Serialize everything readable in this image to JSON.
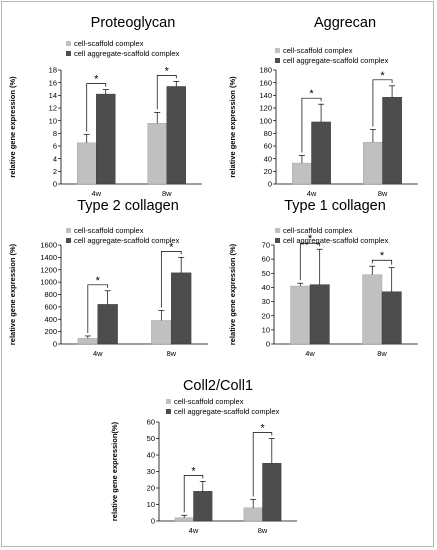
{
  "colors": {
    "series1": "#c0c0c0",
    "series2": "#4d4d4d",
    "axis": "#000000"
  },
  "chart_data": [
    {
      "type": "bar",
      "title": "Proteoglycan",
      "ylabel": "relative gene expression (%)",
      "categories": [
        "4w",
        "8w"
      ],
      "ylim": [
        0,
        18
      ],
      "yticks": [
        0,
        2,
        4,
        6,
        8,
        10,
        12,
        14,
        16,
        18
      ],
      "series": [
        {
          "name": "cell-scaffold complex",
          "values": [
            6.5,
            9.6
          ],
          "errors": [
            1.3,
            1.7
          ]
        },
        {
          "name": "cell aggregate-scaffold complex",
          "values": [
            14.2,
            15.4
          ],
          "errors": [
            0.7,
            0.8
          ]
        }
      ],
      "annotations": [
        "*",
        "*"
      ]
    },
    {
      "type": "bar",
      "title": "Aggrecan",
      "ylabel": "relative gene expression (%)",
      "categories": [
        "4w",
        "8w"
      ],
      "ylim": [
        0,
        180
      ],
      "yticks": [
        0,
        20,
        40,
        60,
        80,
        100,
        120,
        140,
        160,
        180
      ],
      "series": [
        {
          "name": "cell-scaffold complex",
          "values": [
            33,
            66
          ],
          "errors": [
            12,
            20
          ]
        },
        {
          "name": "cell aggregate-scaffold complex",
          "values": [
            98,
            137
          ],
          "errors": [
            28,
            18
          ]
        }
      ],
      "annotations": [
        "*",
        "*"
      ]
    },
    {
      "type": "bar",
      "title": "Type 2 collagen",
      "ylabel": "relative gene expression (%)",
      "categories": [
        "4w",
        "8w"
      ],
      "ylim": [
        0,
        1600
      ],
      "yticks": [
        0,
        200,
        400,
        600,
        800,
        1000,
        1200,
        1400,
        1600
      ],
      "series": [
        {
          "name": "cell-scaffold complex",
          "values": [
            90,
            380
          ],
          "errors": [
            40,
            160
          ]
        },
        {
          "name": "cell aggregate-scaffold complex",
          "values": [
            640,
            1150
          ],
          "errors": [
            220,
            250
          ]
        }
      ],
      "annotations": [
        "*",
        "*"
      ]
    },
    {
      "type": "bar",
      "title": "Type 1 collagen",
      "ylabel": "relative gene expression (%)",
      "categories": [
        "4w",
        "8w"
      ],
      "ylim": [
        0,
        70
      ],
      "yticks": [
        0,
        10,
        20,
        30,
        40,
        50,
        60,
        70
      ],
      "series": [
        {
          "name": "cell-scaffold complex",
          "values": [
            41,
            49
          ],
          "errors": [
            2,
            6
          ]
        },
        {
          "name": "cell aggregate-scaffold complex",
          "values": [
            42,
            37
          ],
          "errors": [
            25,
            17
          ]
        }
      ],
      "annotations": [
        "*",
        "*"
      ]
    },
    {
      "type": "bar",
      "title": "Coll2/Coll1",
      "ylabel": "relative gene expression(%)",
      "categories": [
        "4w",
        "8w"
      ],
      "ylim": [
        0,
        60
      ],
      "yticks": [
        0,
        10,
        20,
        30,
        40,
        50,
        60
      ],
      "series": [
        {
          "name": "cell-scaffold complex",
          "values": [
            2,
            8
          ],
          "errors": [
            1.5,
            5
          ]
        },
        {
          "name": "cell aggregate-scaffold complex",
          "values": [
            18,
            35
          ],
          "errors": [
            6,
            15
          ]
        }
      ],
      "annotations": [
        "*",
        "*"
      ]
    }
  ]
}
